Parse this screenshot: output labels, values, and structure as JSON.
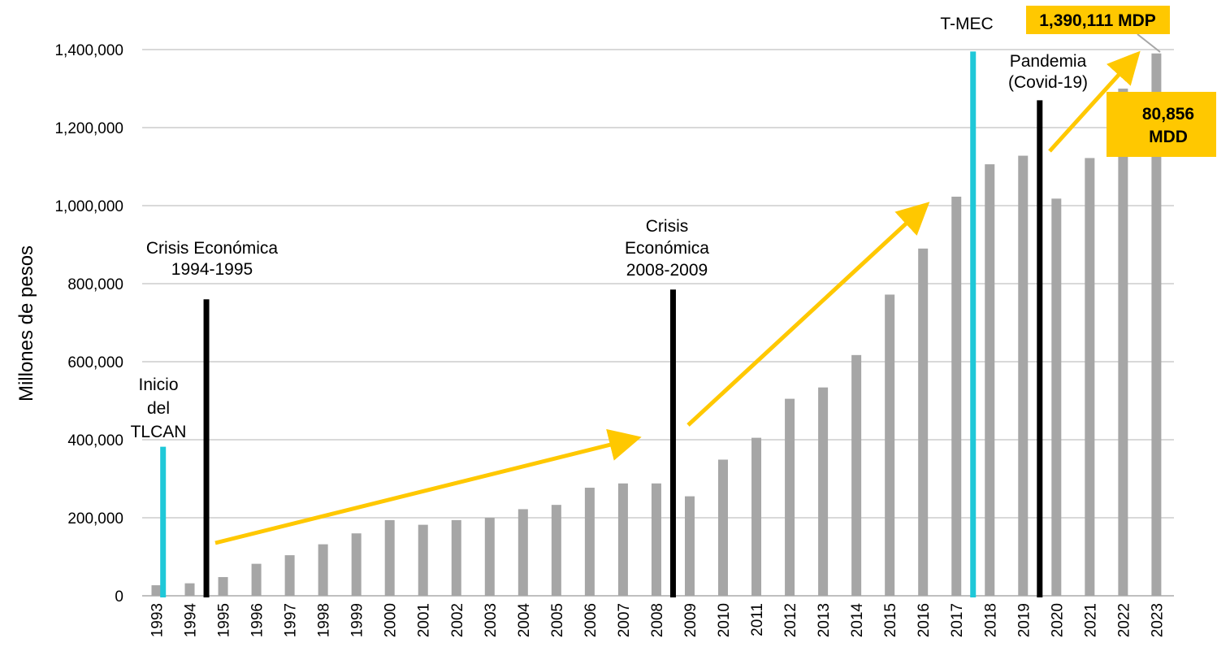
{
  "chart_data": {
    "type": "bar",
    "title": "",
    "xlabel": "",
    "ylabel": "Millones de pesos",
    "ylim": [
      0,
      1400000
    ],
    "yticks": [
      0,
      200000,
      400000,
      600000,
      800000,
      1000000,
      1200000,
      1400000
    ],
    "ytick_labels": [
      "0",
      "200,000",
      "400,000",
      "600,000",
      "800,000",
      "1,000,000",
      "1,200,000",
      "1,400,000"
    ],
    "grid": true,
    "categories": [
      "1993",
      "1994",
      "1995",
      "1996",
      "1997",
      "1998",
      "1999",
      "2000",
      "2001",
      "2002",
      "2003",
      "2004",
      "2005",
      "2006",
      "2007",
      "2008",
      "2009",
      "2010",
      "2011",
      "2012",
      "2013",
      "2014",
      "2015",
      "2016",
      "2017",
      "2018",
      "2019",
      "2020",
      "2021",
      "2022",
      "2023"
    ],
    "values": [
      27000,
      32000,
      48000,
      82000,
      104000,
      132000,
      160000,
      194000,
      182000,
      194000,
      200000,
      222000,
      233000,
      277000,
      288000,
      288000,
      255000,
      349000,
      405000,
      505000,
      534000,
      617000,
      772000,
      890000,
      1023000,
      1106000,
      1128000,
      1018000,
      1122000,
      1300000,
      1390111
    ],
    "bar_color": "#a6a6a6",
    "events": [
      {
        "label_lines": [
          "Inicio",
          "del",
          "TLCAN"
        ],
        "x_position": 1993.2,
        "top_value": 382000,
        "color": "#1fc8d8"
      },
      {
        "label_lines": [
          "Crisis Económica",
          "1994-1995"
        ],
        "x_position": 1994.5,
        "top_value": 760000,
        "color": "#000000"
      },
      {
        "label_lines": [
          "Crisis",
          "Económica",
          "2008-2009"
        ],
        "x_position": 2008.5,
        "top_value": 785000,
        "color": "#000000"
      },
      {
        "label_lines": [
          "T-MEC"
        ],
        "x_position": 2017.5,
        "top_value": 1395000,
        "color": "#1fc8d8"
      },
      {
        "label_lines": [
          "Pandemia",
          "(Covid-19)"
        ],
        "x_position": 2019.5,
        "top_value": 1270000,
        "color": "#000000"
      }
    ],
    "callouts": [
      {
        "text": "1,390,111 MDP",
        "color": "#ffc800"
      },
      {
        "text_lines": [
          "80,856",
          "MDD"
        ],
        "color": "#ffc800"
      }
    ],
    "trend_arrow_color": "#ffc800"
  }
}
